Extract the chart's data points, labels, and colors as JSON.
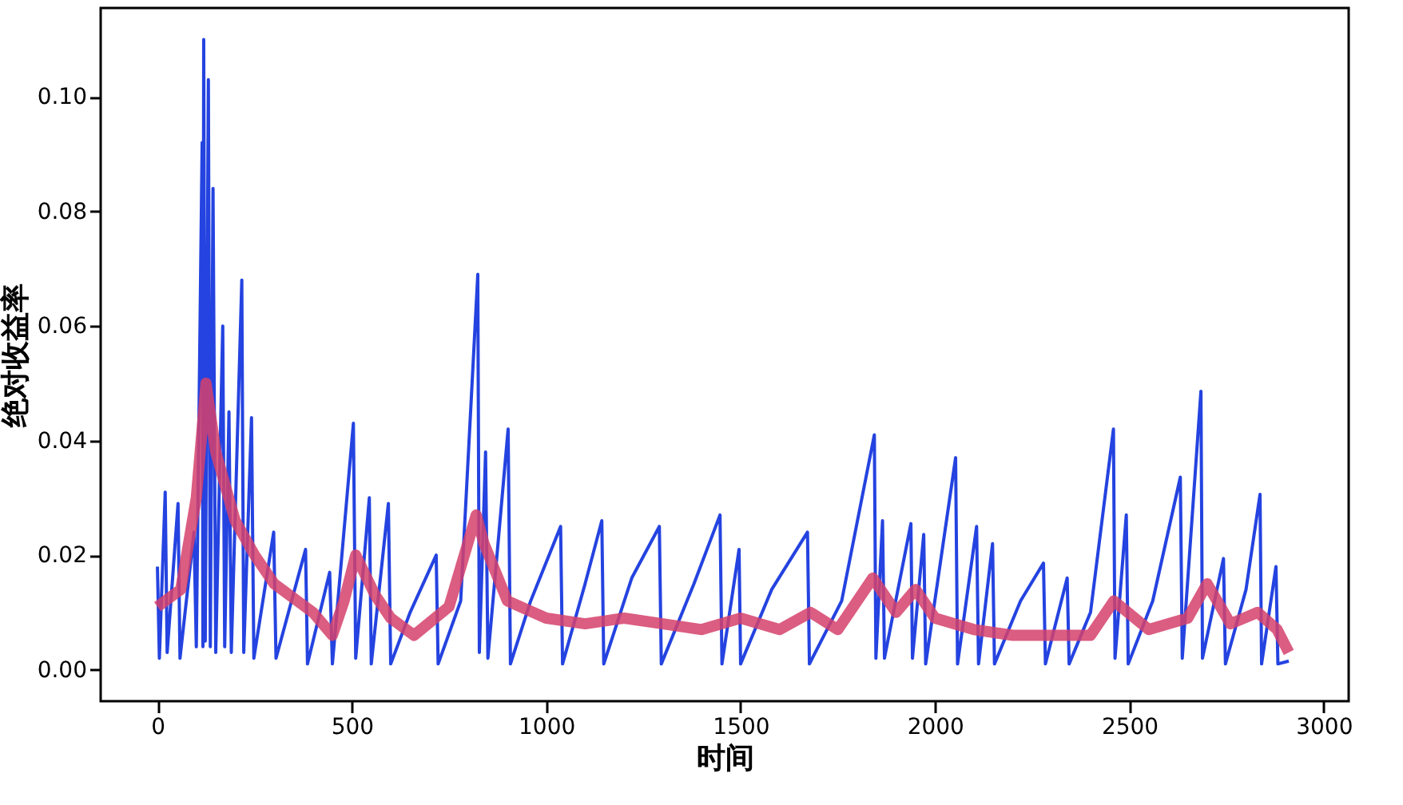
{
  "chart_data": {
    "type": "line",
    "xlabel": "时间",
    "ylabel": "绝对收益率",
    "xlim": [
      -146,
      3064
    ],
    "ylim": [
      -0.0055,
      0.1155
    ],
    "xticks": [
      0,
      500,
      1000,
      1500,
      2000,
      2500,
      3000
    ],
    "yticks": [
      {
        "value": 0,
        "label": "0.00"
      },
      0.02,
      0.04,
      0.06,
      0.08,
      {
        "value": 0.1,
        "label": "0.10"
      }
    ],
    "grid": false,
    "series": [
      {
        "color": "#2443e0",
        "x": [
          0,
          5,
          20,
          25,
          53,
          58,
          94,
          100,
          115,
          117,
          119,
          123,
          131,
          136,
          143,
          150,
          168,
          173,
          184,
          190,
          217,
          222,
          242,
          248,
          299,
          305,
          381,
          386,
          443,
          450,
          504,
          510,
          545,
          550,
          594,
          600,
          650,
          717,
          722,
          780,
          824,
          828,
          844,
          850,
          902,
          908,
          960,
          1037,
          1042,
          1100,
          1143,
          1148,
          1220,
          1291,
          1296,
          1380,
          1447,
          1452,
          1496,
          1500,
          1580,
          1672,
          1677,
          1760,
          1844,
          1848,
          1865,
          1870,
          1938,
          1942,
          1971,
          1976,
          2053,
          2058,
          2107,
          2112,
          2148,
          2153,
          2220,
          2279,
          2284,
          2340,
          2345,
          2400,
          2459,
          2463,
          2492,
          2497,
          2560,
          2631,
          2636,
          2684,
          2688,
          2742,
          2747,
          2800,
          2836,
          2840,
          2877,
          2882,
          2910
        ],
        "values": [
          0.018,
          0.002,
          0.031,
          0.003,
          0.029,
          0.002,
          0.024,
          0.004,
          0.092,
          0.004,
          0.11,
          0.005,
          0.103,
          0.004,
          0.084,
          0.003,
          0.06,
          0.004,
          0.045,
          0.003,
          0.068,
          0.003,
          0.044,
          0.002,
          0.024,
          0.002,
          0.021,
          0.001,
          0.017,
          0.001,
          0.043,
          0.002,
          0.03,
          0.001,
          0.029,
          0.001,
          0.01,
          0.02,
          0.001,
          0.012,
          0.069,
          0.003,
          0.038,
          0.002,
          0.042,
          0.001,
          0.012,
          0.025,
          0.001,
          0.015,
          0.026,
          0.001,
          0.016,
          0.025,
          0.001,
          0.015,
          0.027,
          0.001,
          0.021,
          0.001,
          0.014,
          0.024,
          0.001,
          0.012,
          0.041,
          0.002,
          0.026,
          0.002,
          0.0255,
          0.002,
          0.0236,
          0.001,
          0.037,
          0.001,
          0.025,
          0.001,
          0.022,
          0.001,
          0.012,
          0.0186,
          0.001,
          0.016,
          0.001,
          0.01,
          0.042,
          0.002,
          0.027,
          0.001,
          0.012,
          0.0336,
          0.002,
          0.0486,
          0.002,
          0.0194,
          0.001,
          0.014,
          0.0306,
          0.001,
          0.018,
          0.001,
          0.0015
        ]
      },
      {
        "color": "#d5416b",
        "x": [
          0,
          60,
          100,
          125,
          150,
          200,
          250,
          300,
          400,
          450,
          480,
          510,
          560,
          600,
          660,
          750,
          820,
          840,
          900,
          1000,
          1100,
          1200,
          1300,
          1400,
          1500,
          1600,
          1680,
          1750,
          1840,
          1900,
          1950,
          2000,
          2100,
          2200,
          2300,
          2400,
          2460,
          2550,
          2650,
          2700,
          2760,
          2830,
          2880,
          2910
        ],
        "values": [
          0.011,
          0.014,
          0.03,
          0.05,
          0.038,
          0.026,
          0.02,
          0.015,
          0.01,
          0.006,
          0.012,
          0.02,
          0.013,
          0.009,
          0.006,
          0.011,
          0.027,
          0.022,
          0.012,
          0.009,
          0.008,
          0.009,
          0.008,
          0.007,
          0.009,
          0.007,
          0.01,
          0.007,
          0.016,
          0.01,
          0.014,
          0.009,
          0.007,
          0.006,
          0.006,
          0.006,
          0.012,
          0.007,
          0.009,
          0.015,
          0.008,
          0.01,
          0.007,
          0.003
        ]
      }
    ]
  }
}
